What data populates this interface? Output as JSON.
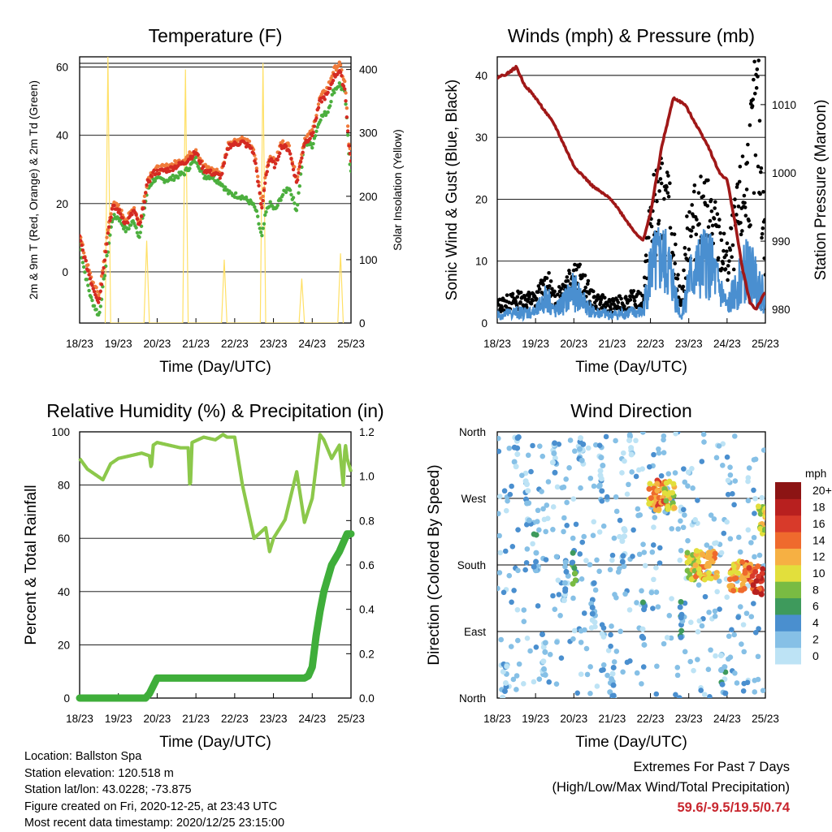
{
  "chart_data": [
    {
      "type": "line",
      "title": "Temperature (F)",
      "xlabel": "Time (Day/UTC)",
      "ylabel": "2m & 9m T (Red, Orange) & 2m Td (Green)",
      "ylabel_right": "Solar Insolation (Yellow)",
      "xticks": [
        "18/23",
        "19/23",
        "20/23",
        "21/23",
        "22/23",
        "23/23",
        "24/23",
        "25/23"
      ],
      "ylim": [
        -15,
        63
      ],
      "yticks": [
        0,
        20,
        40,
        60
      ],
      "ylim_right": [
        0,
        420
      ],
      "yticks_right": [
        0,
        100,
        200,
        300,
        400
      ],
      "colors": {
        "t2m": "#d42a22",
        "t9m": "#f07a3a",
        "td2m": "#4caf3e",
        "solar": "#ffe066"
      },
      "series": [
        {
          "name": "2m T",
          "x": [
            0,
            0.15,
            0.3,
            0.5,
            0.75,
            0.85,
            1,
            1.2,
            1.4,
            1.55,
            1.75,
            1.9,
            2.3,
            2.7,
            3,
            3.2,
            3.4,
            3.65,
            3.85,
            4.2,
            4.45,
            4.55,
            4.7,
            4.8,
            4.9,
            5.05,
            5.2,
            5.4,
            5.6,
            5.8,
            6,
            6.2,
            6.4,
            6.55,
            6.7,
            6.85,
            6.95,
            7
          ],
          "y": [
            10,
            3,
            -3,
            -9,
            13,
            19,
            18,
            14,
            18,
            13,
            26,
            29,
            30,
            32,
            35,
            30,
            29,
            28,
            37,
            38,
            36,
            31,
            18,
            28,
            33,
            31,
            37,
            36,
            26,
            38,
            40,
            50,
            52,
            57,
            59,
            53,
            36,
            33
          ]
        },
        {
          "name": "9m T",
          "x": [
            0,
            0.15,
            0.3,
            0.5,
            0.75,
            0.85,
            1,
            1.2,
            1.4,
            1.55,
            1.75,
            1.9,
            2.3,
            2.7,
            3,
            3.2,
            3.4,
            3.65,
            3.85,
            4.2,
            4.45,
            4.55,
            4.7,
            4.8,
            4.9,
            5.05,
            5.2,
            5.4,
            5.6,
            5.8,
            6,
            6.2,
            6.4,
            6.55,
            6.7,
            6.85,
            6.95,
            7
          ],
          "y": [
            11,
            4,
            -2,
            -7,
            14,
            20,
            19,
            15,
            19,
            14,
            27,
            30,
            31,
            33,
            36,
            31,
            30,
            29,
            38,
            39,
            37,
            32,
            19,
            29,
            34,
            32,
            38,
            37,
            27,
            39,
            41,
            51,
            54,
            59,
            61,
            55,
            37,
            34
          ]
        },
        {
          "name": "2m Td",
          "x": [
            0,
            0.15,
            0.3,
            0.5,
            0.75,
            0.85,
            1,
            1.2,
            1.4,
            1.55,
            1.75,
            1.9,
            2.3,
            2.7,
            3,
            3.2,
            3.4,
            3.65,
            3.85,
            4.2,
            4.45,
            4.55,
            4.7,
            4.8,
            4.9,
            5.05,
            5.2,
            5.4,
            5.6,
            5.8,
            6,
            6.2,
            6.4,
            6.55,
            6.7,
            6.85,
            6.95,
            7
          ],
          "y": [
            8,
            -1,
            -8,
            -13,
            8,
            16,
            16,
            12,
            15,
            10,
            24,
            27,
            27,
            29,
            33,
            28,
            28,
            26,
            23,
            22,
            20,
            18,
            10,
            17,
            20,
            18,
            22,
            25,
            18,
            38,
            37,
            45,
            47,
            53,
            55,
            52,
            34,
            30
          ]
        },
        {
          "name": "Solar Insolation",
          "axis": "right",
          "x": [
            0.66,
            0.73,
            0.8,
            1.66,
            1.73,
            1.8,
            2.66,
            2.73,
            2.8,
            3.66,
            3.73,
            3.8,
            4.66,
            4.73,
            4.8,
            5.66,
            5.73,
            5.8,
            6.66,
            6.73,
            6.8
          ],
          "y": [
            0,
            420,
            0,
            0,
            130,
            0,
            0,
            400,
            0,
            0,
            100,
            0,
            0,
            410,
            0,
            0,
            70,
            0,
            0,
            110,
            0
          ]
        }
      ]
    },
    {
      "type": "scatter",
      "title": "Winds (mph) & Pressure (mb)",
      "xlabel": "Time (Day/UTC)",
      "ylabel": "Sonic Wind & Gust (Blue, Black)",
      "ylabel_right": "Station Pressure (Maroon)",
      "xticks": [
        "18/23",
        "19/23",
        "20/23",
        "21/23",
        "22/23",
        "23/23",
        "24/23",
        "25/23"
      ],
      "ylim": [
        0,
        43
      ],
      "yticks": [
        0,
        10,
        20,
        30,
        40
      ],
      "ylim_right": [
        978,
        1017
      ],
      "yticks_right": [
        980,
        990,
        1000,
        1010
      ],
      "colors": {
        "wind": "#4a8fd0",
        "gust": "#000000",
        "pressure": "#a01818"
      },
      "series": [
        {
          "name": "Sonic Wind",
          "x": [
            0,
            0.5,
            1,
            1.3,
            1.5,
            2,
            2.5,
            3,
            3.5,
            3.8,
            4,
            4.3,
            4.5,
            4.8,
            5,
            5.5,
            6,
            6.5,
            6.8,
            7
          ],
          "y": [
            1.5,
            2,
            2,
            5,
            2,
            6,
            2,
            1.5,
            2,
            2,
            10,
            12,
            10,
            1,
            8,
            12,
            3,
            10,
            8,
            4
          ]
        },
        {
          "name": "Gust",
          "x": [
            0,
            0.5,
            1,
            1.3,
            1.5,
            2,
            2.5,
            3,
            3.5,
            3.8,
            4,
            4.3,
            4.5,
            4.8,
            5,
            5.5,
            6,
            6.5,
            6.8,
            7
          ],
          "y": [
            3,
            4,
            4,
            7,
            4,
            9,
            4,
            3,
            4,
            4,
            18,
            21,
            18,
            3,
            17,
            19,
            10,
            24,
            36,
            12
          ]
        },
        {
          "name": "Station Pressure",
          "axis": "right",
          "x": [
            0,
            0.25,
            0.5,
            0.7,
            1,
            1.5,
            2,
            2.5,
            3,
            3.5,
            3.8,
            4,
            4.3,
            4.6,
            4.9,
            5.2,
            5.5,
            5.8,
            6,
            6.2,
            6.4,
            6.6,
            6.75,
            6.9,
            7
          ],
          "y": [
            1014,
            1014.5,
            1015.5,
            1013,
            1011,
            1007,
            1001,
            998,
            996,
            992,
            990,
            994,
            1004,
            1011,
            1010,
            1007,
            1004,
            1000,
            999,
            993,
            986,
            981,
            980,
            981.5,
            982.5
          ]
        }
      ]
    },
    {
      "type": "line",
      "title": "Relative Humidity (%) & Precipitation (in)",
      "xlabel": "Time (Day/UTC)",
      "ylabel": "Percent & Total Rainfall",
      "xticks": [
        "18/23",
        "19/23",
        "20/23",
        "21/23",
        "22/23",
        "23/23",
        "24/23",
        "25/23"
      ],
      "ylim": [
        0,
        100
      ],
      "yticks": [
        0,
        20,
        40,
        60,
        80,
        100
      ],
      "ylim_right": [
        0,
        1.2
      ],
      "yticks_right": [
        0.0,
        0.2,
        0.4,
        0.6,
        0.8,
        1.0,
        1.2
      ],
      "colors": {
        "rh": "#8cc84b",
        "precip": "#3fae3a"
      },
      "series": [
        {
          "name": "Relative Humidity",
          "x": [
            0,
            0.2,
            0.4,
            0.6,
            0.8,
            1,
            1.3,
            1.6,
            1.8,
            1.85,
            1.9,
            2,
            2.3,
            2.6,
            2.8,
            2.85,
            2.9,
            3.2,
            3.5,
            3.7,
            3.8,
            4,
            4.2,
            4.5,
            4.8,
            4.9,
            5,
            5.3,
            5.6,
            5.8,
            6,
            6.2,
            6.3,
            6.5,
            6.7,
            6.8,
            6.85,
            6.9,
            7
          ],
          "y": [
            90,
            86,
            84,
            82,
            88,
            90,
            91,
            92,
            91,
            86,
            95,
            96,
            95,
            94,
            94,
            77,
            96,
            98,
            97,
            99,
            98,
            98,
            80,
            60,
            64,
            55,
            60,
            67,
            85,
            66,
            75,
            99,
            97,
            90,
            95,
            80,
            96,
            90,
            85
          ]
        },
        {
          "name": "Total Precipitation",
          "axis": "right",
          "x": [
            0,
            1.7,
            1.8,
            2,
            3,
            4,
            5,
            5.8,
            5.9,
            6,
            6.1,
            6.2,
            6.3,
            6.4,
            6.5,
            6.6,
            6.7,
            6.8,
            6.9,
            7
          ],
          "y": [
            0,
            0,
            0.02,
            0.09,
            0.09,
            0.09,
            0.09,
            0.09,
            0.1,
            0.14,
            0.28,
            0.39,
            0.48,
            0.54,
            0.6,
            0.63,
            0.66,
            0.7,
            0.74,
            0.74
          ]
        }
      ]
    },
    {
      "type": "scatter",
      "title": "Wind Direction",
      "xlabel": "Time (Day/UTC)",
      "ylabel": "Direction (Colored By Speed)",
      "xticks": [
        "18/23",
        "19/23",
        "20/23",
        "21/23",
        "22/23",
        "23/23",
        "24/23",
        "25/23"
      ],
      "yticks": [
        "North",
        "East",
        "South",
        "West",
        "North"
      ],
      "ylim": [
        0,
        360
      ],
      "colorbar": {
        "title": "mph",
        "labels": [
          "0",
          "2",
          "4",
          "6",
          "8",
          "10",
          "12",
          "14",
          "16",
          "18",
          "20+"
        ],
        "colors": [
          "#bde3f5",
          "#86c0e6",
          "#4a8fcf",
          "#3e9a5c",
          "#79bb43",
          "#e2df3c",
          "#f6b043",
          "#ef6a2d",
          "#d83a2a",
          "#b8201f",
          "#8c1414"
        ]
      },
      "series": [
        {
          "name": "Wind Direction",
          "x": [
            0.2,
            0.5,
            0.8,
            1,
            1.2,
            1.5,
            1.8,
            2,
            2.2,
            2.5,
            2.7,
            3,
            3.3,
            3.5,
            3.8,
            4.1,
            4.3,
            4.5,
            4.8,
            5.1,
            5.3,
            5.6,
            5.9,
            6.2,
            6.5,
            6.8,
            6.95
          ],
          "y": [
            20,
            330,
            270,
            200,
            60,
            320,
            160,
            180,
            330,
            130,
            300,
            20,
            200,
            340,
            100,
            270,
            275,
            275,
            110,
            180,
            180,
            180,
            30,
            165,
            165,
            160,
            240
          ],
          "speed": [
            2,
            1,
            1,
            4,
            1,
            2,
            3,
            6,
            1,
            2,
            1,
            2,
            1,
            1,
            3,
            12,
            14,
            10,
            4,
            10,
            12,
            12,
            3,
            12,
            14,
            16,
            10
          ]
        }
      ]
    }
  ],
  "station": {
    "location": "Location: Ballston Spa",
    "elevation": "Station elevation: 120.518 m",
    "latlon": "Station lat/lon: 43.0228; -73.875",
    "created": "Figure created on Fri, 2020-12-25, at 23:43 UTC",
    "latest": "Most recent data timestamp: 2020/12/25 23:15:00"
  },
  "extremes": {
    "title": "Extremes For Past 7 Days",
    "subtitle": "(High/Low/Max Wind/Total Precipitation)",
    "values": "59.6/-9.5/19.5/0.74"
  }
}
